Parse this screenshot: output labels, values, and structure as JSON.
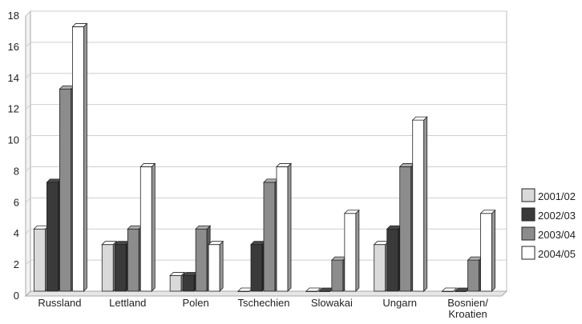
{
  "chart_data": {
    "type": "bar",
    "title": "",
    "xlabel": "",
    "ylabel": "",
    "ylim": [
      0,
      18
    ],
    "yticks": [
      0,
      2,
      4,
      6,
      8,
      10,
      12,
      14,
      16,
      18
    ],
    "grid": true,
    "legend_position": "right",
    "categories": [
      [
        "Russland"
      ],
      [
        "Lettland"
      ],
      [
        "Polen"
      ],
      [
        "Tschechien"
      ],
      [
        "Slowakai"
      ],
      [
        "Ungarn"
      ],
      [
        "Bosnien/",
        "Kroatien"
      ]
    ],
    "series": [
      {
        "name": "2001/02",
        "color": "#d9d9d9",
        "values": [
          4,
          3,
          1,
          0,
          0,
          3,
          0
        ]
      },
      {
        "name": "2002/03",
        "color": "#3a3a3a",
        "values": [
          7,
          3,
          1,
          3,
          0,
          4,
          0
        ]
      },
      {
        "name": "2003/04",
        "color": "#8c8c8c",
        "values": [
          13,
          4,
          4,
          7,
          2,
          8,
          2
        ]
      },
      {
        "name": "2004/05",
        "color": "#ffffff",
        "values": [
          17,
          8,
          3,
          8,
          5,
          11,
          5
        ]
      }
    ]
  }
}
